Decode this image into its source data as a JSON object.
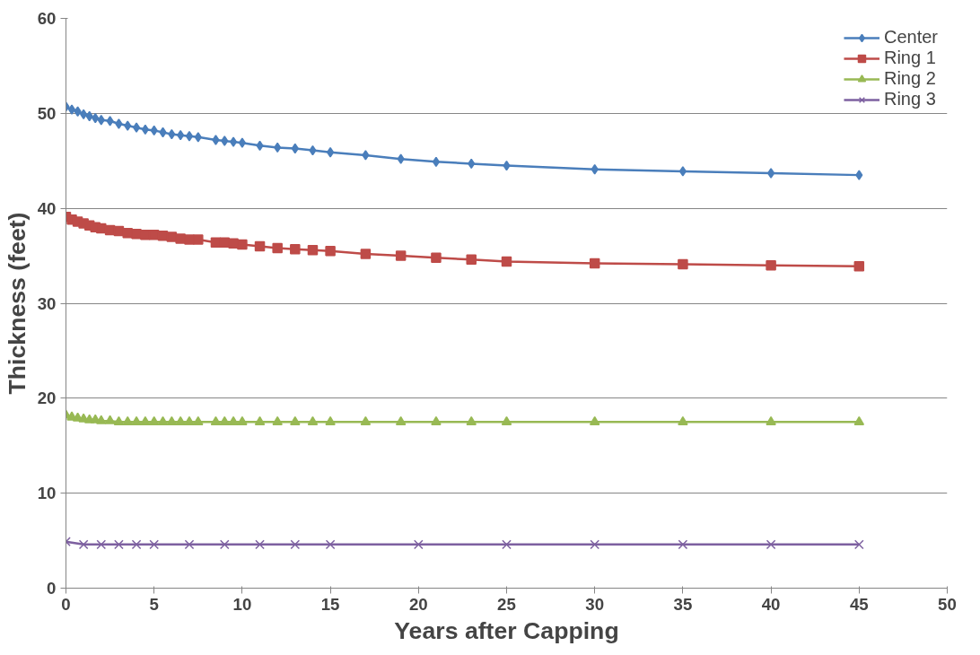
{
  "chart_data": {
    "type": "line",
    "xlabel": "Years after Capping",
    "ylabel": "Thickness (feet)",
    "xlim": [
      0,
      50
    ],
    "xticks": [
      0,
      5,
      10,
      15,
      20,
      25,
      30,
      35,
      40,
      45,
      50
    ],
    "ylim": [
      0,
      60
    ],
    "yticks": [
      0,
      10,
      20,
      30,
      40,
      50,
      60
    ],
    "grid": "y",
    "legend": "top right",
    "line_style": "solid",
    "x": [
      0,
      0.333,
      0.667,
      1,
      1.333,
      1.667,
      2,
      2.5,
      3,
      3.5,
      4,
      4.5,
      5,
      5.5,
      6,
      6.5,
      7,
      7.5,
      8.5,
      9,
      9.5,
      10,
      11,
      12,
      13,
      14,
      15,
      17,
      19,
      21,
      23,
      25,
      30,
      35,
      40,
      45
    ],
    "series": [
      {
        "name": "Center",
        "color": "#4a7ebb",
        "marker": "diamond",
        "values": [
          50.7,
          50.4,
          50.2,
          49.9,
          49.7,
          49.5,
          49.3,
          49.2,
          48.9,
          48.7,
          48.5,
          48.3,
          48.2,
          48.0,
          47.8,
          47.7,
          47.6,
          47.5,
          47.2,
          47.1,
          47.0,
          46.9,
          46.6,
          46.4,
          46.3,
          46.1,
          45.9,
          45.6,
          45.2,
          44.9,
          44.7,
          44.5,
          44.1,
          43.9,
          43.7,
          43.5
        ]
      },
      {
        "name": "Ring 1",
        "color": "#be4b48",
        "marker": "square",
        "values": [
          39.1,
          38.8,
          38.6,
          38.4,
          38.2,
          38.0,
          37.9,
          37.7,
          37.6,
          37.4,
          37.3,
          37.2,
          37.2,
          37.1,
          37.0,
          36.8,
          36.7,
          36.7,
          36.4,
          36.4,
          36.3,
          36.2,
          36.0,
          35.8,
          35.7,
          35.6,
          35.5,
          35.2,
          35.0,
          34.8,
          34.6,
          34.4,
          34.2,
          34.1,
          34.0,
          33.9
        ]
      },
      {
        "name": "Ring 2",
        "color": "#98b954",
        "marker": "triangle",
        "values": [
          18.2,
          18.0,
          17.9,
          17.8,
          17.7,
          17.7,
          17.6,
          17.6,
          17.5,
          17.5,
          17.5,
          17.5,
          17.5,
          17.5,
          17.5,
          17.5,
          17.5,
          17.5,
          17.5,
          17.5,
          17.5,
          17.5,
          17.5,
          17.5,
          17.5,
          17.5,
          17.5,
          17.5,
          17.5,
          17.5,
          17.5,
          17.5,
          17.5,
          17.5,
          17.5,
          17.5
        ]
      },
      {
        "name": "Ring 3",
        "color": "#7d60a0",
        "marker": "cross",
        "x": [
          0,
          1,
          2,
          3,
          4,
          5,
          7,
          9,
          11,
          13,
          15,
          20,
          25,
          30,
          35,
          40,
          45
        ],
        "values": [
          4.9,
          4.6,
          4.6,
          4.6,
          4.6,
          4.6,
          4.6,
          4.6,
          4.6,
          4.6,
          4.6,
          4.6,
          4.6,
          4.6,
          4.6,
          4.6,
          4.6
        ]
      }
    ]
  }
}
